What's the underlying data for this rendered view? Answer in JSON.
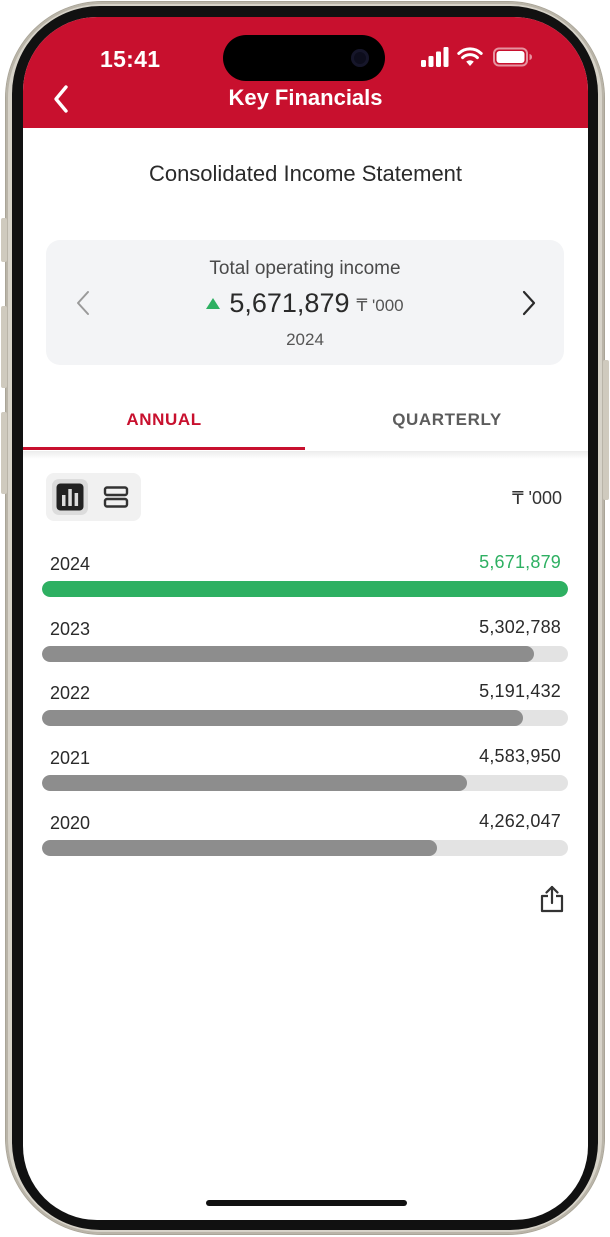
{
  "status_bar": {
    "time": "15:41"
  },
  "header": {
    "title": "Key Financials"
  },
  "statement": {
    "title": "Consolidated Income Statement"
  },
  "summary_card": {
    "label": "Total operating income",
    "value": "5,671,879",
    "unit": "₸ '000",
    "year": "2024",
    "trend": "up"
  },
  "tabs": [
    {
      "label": "ANNUAL",
      "active": true
    },
    {
      "label": "QUARTERLY",
      "active": false
    }
  ],
  "unit_label": "₸ '000",
  "chart_data": {
    "type": "bar",
    "orientation": "horizontal",
    "categories": [
      "2024",
      "2023",
      "2022",
      "2021",
      "2020"
    ],
    "values": [
      5671879,
      5302788,
      5191432,
      4583950,
      4262047
    ],
    "value_labels": [
      "5,671,879",
      "5,302,788",
      "5,191,432",
      "4,583,950",
      "4,262,047"
    ],
    "highlight": "2024"
  },
  "colors": {
    "brand": "#c8102e",
    "positive": "#2eb062",
    "bar": "#8d8d8d",
    "track": "#e3e3e3"
  },
  "icons": {
    "back": "chevron-left-icon",
    "prev": "chevron-left-icon",
    "next": "chevron-right-icon",
    "chart_view": "bar-chart-icon",
    "list_view": "list-icon",
    "share": "share-icon"
  }
}
